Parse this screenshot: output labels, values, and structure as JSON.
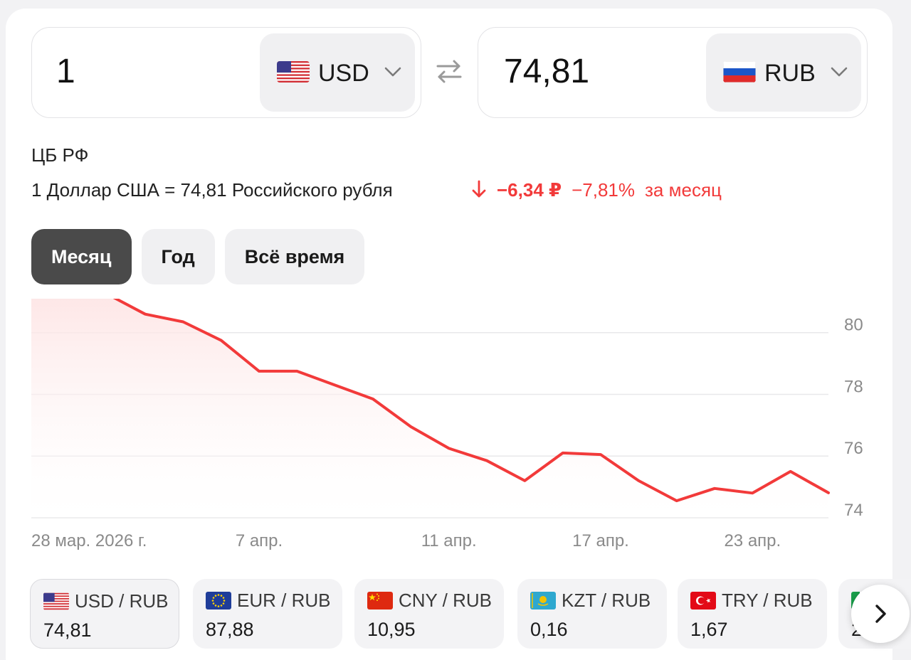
{
  "converter": {
    "from": {
      "amount": "1",
      "code": "USD",
      "flag_icon": "us-flag-icon"
    },
    "to": {
      "amount": "74,81",
      "code": "RUB",
      "flag_icon": "ru-flag-icon"
    }
  },
  "source": "ЦБ РФ",
  "rate_line": "1 Доллар США = 74,81 Российского рубля",
  "change": {
    "direction": "down",
    "abs": "−6,34 ₽",
    "pct": "−7,81%",
    "period": "за месяц",
    "color": "#f23a3a"
  },
  "period_tabs": [
    {
      "label": "Месяц",
      "active": true
    },
    {
      "label": "Год",
      "active": false
    },
    {
      "label": "Всё время",
      "active": false
    }
  ],
  "chart_data": {
    "type": "area",
    "x_tick_labels": [
      "28 мар. 2026 г.",
      "7 апр.",
      "11 апр.",
      "17 апр.",
      "23 апр."
    ],
    "x_tick_index": [
      0,
      6,
      11,
      15,
      19
    ],
    "y_ticks": [
      74,
      76,
      78,
      80
    ],
    "ylim": [
      74,
      81.1
    ],
    "series": [
      {
        "values": [
          81.2,
          81.3,
          81.25,
          80.6,
          80.35,
          79.75,
          78.75,
          78.75,
          78.3,
          77.85,
          76.95,
          76.25,
          75.85,
          75.2,
          76.1,
          76.05,
          75.2,
          74.55,
          74.95,
          74.8,
          75.5,
          74.81
        ],
        "color": "#f23a3a"
      }
    ],
    "grid": true
  },
  "pairs": [
    {
      "name": "USD / RUB",
      "value": "74,81",
      "flag_icon": "us-flag-icon",
      "active": true
    },
    {
      "name": "EUR / RUB",
      "value": "87,88",
      "flag_icon": "eu-flag-icon",
      "active": false
    },
    {
      "name": "CNY / RUB",
      "value": "10,95",
      "flag_icon": "cn-flag-icon",
      "active": false
    },
    {
      "name": "KZT / RUB",
      "value": "0,16",
      "flag_icon": "kz-flag-icon",
      "active": false
    },
    {
      "name": "TRY / RUB",
      "value": "1,67",
      "flag_icon": "tr-flag-icon",
      "active": false
    },
    {
      "name": "",
      "value": "2",
      "flag_icon": "partial-flag-icon",
      "active": false
    }
  ]
}
